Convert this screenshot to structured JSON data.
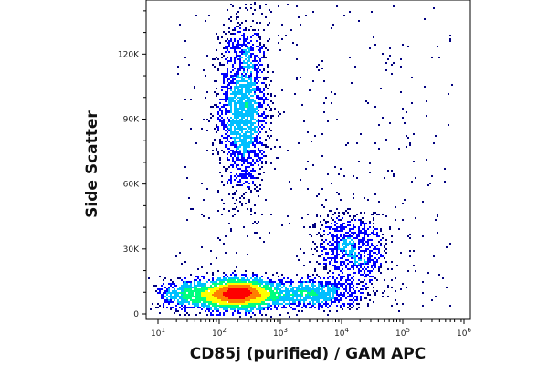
{
  "chart_data": {
    "type": "scatter",
    "subtype": "flow-cytometry density dot plot",
    "xlabel": "CD85j (purified) / GAM APC",
    "ylabel": "Side Scatter",
    "x_scale": "log",
    "xlim": [
      10,
      1000000
    ],
    "ylim": [
      0,
      145000
    ],
    "x_ticks": [
      {
        "value": 10,
        "base": "10",
        "exp": "1"
      },
      {
        "value": 100,
        "base": "10",
        "exp": "2"
      },
      {
        "value": 1000,
        "base": "10",
        "exp": "3"
      },
      {
        "value": 10000,
        "base": "10",
        "exp": "4"
      },
      {
        "value": 100000,
        "base": "10",
        "exp": "5"
      },
      {
        "value": 1000000,
        "base": "10",
        "exp": "6"
      }
    ],
    "y_ticks": [
      {
        "value": 0,
        "label": "0"
      },
      {
        "value": 30000,
        "label": "30K"
      },
      {
        "value": 60000,
        "label": "60K"
      },
      {
        "value": 90000,
        "label": "90K"
      },
      {
        "value": 120000,
        "label": "120K"
      }
    ],
    "populations": [
      {
        "x_center": 250,
        "y_center": 95000,
        "x_spread_decades": 0.2,
        "y_spread": 20000,
        "density": "high",
        "events": 1800
      },
      {
        "x_center": 200,
        "y_center": 9000,
        "x_spread_decades": 0.35,
        "y_spread": 3500,
        "density": "very high",
        "events": 2600
      },
      {
        "x_center": 30,
        "y_center": 9000,
        "x_spread_decades": 0.25,
        "y_spread": 3500,
        "density": "medium",
        "events": 500
      },
      {
        "x_center": 3000,
        "y_center": 9500,
        "x_spread_decades": 0.45,
        "y_spread": 3500,
        "density": "medium",
        "events": 800
      },
      {
        "x_center": 15000,
        "y_center": 30000,
        "x_spread_decades": 0.3,
        "y_spread": 9000,
        "density": "low",
        "events": 800
      }
    ],
    "color_scale": [
      "#00007f",
      "#0000ff",
      "#00bfff",
      "#00ff7f",
      "#ffff00",
      "#ff7f00",
      "#ff0000"
    ],
    "grid": false,
    "legend": "none"
  }
}
